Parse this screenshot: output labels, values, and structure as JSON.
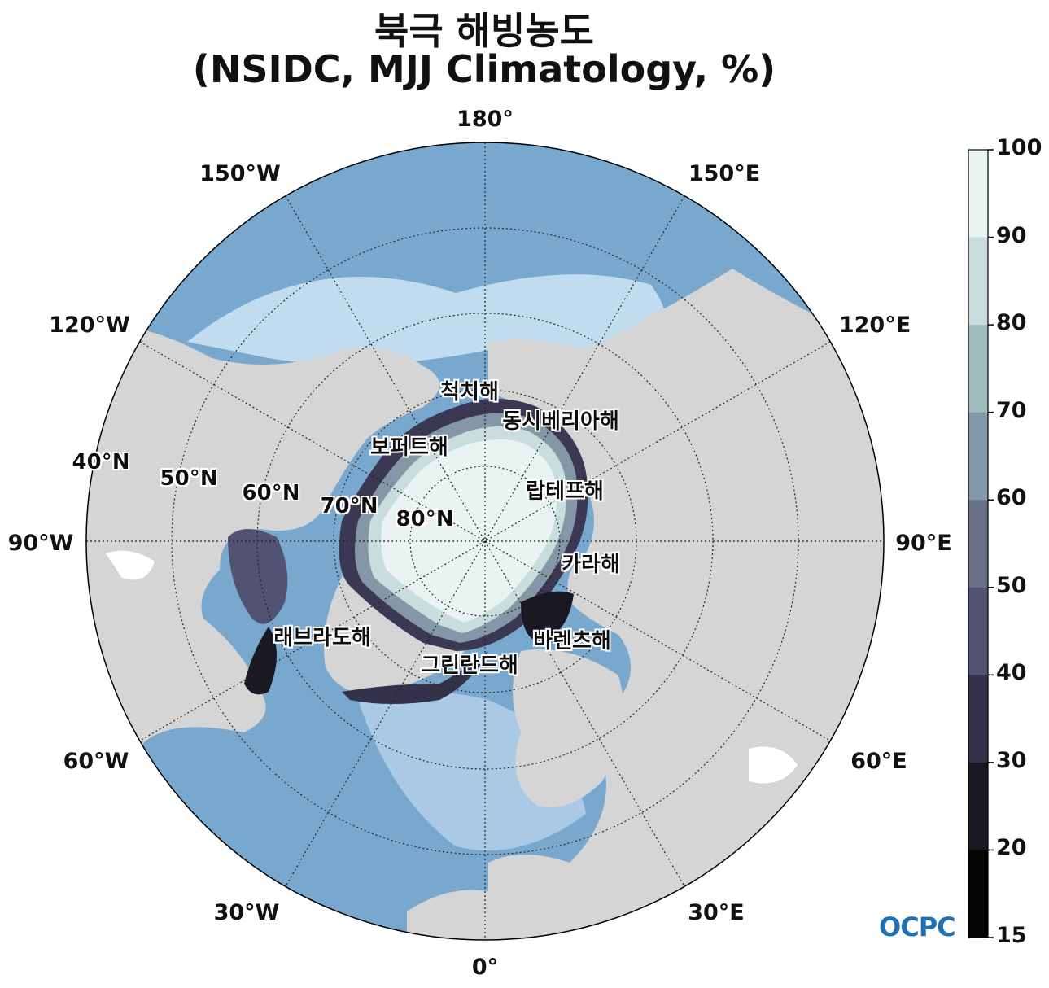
{
  "title": {
    "line1": "북극 해빙농도",
    "line2": "(NSIDC, MJJ Climatology, %)"
  },
  "map": {
    "projection": "north-polar-stereographic",
    "lon_labels": {
      "top": "180°",
      "upper_left": "150°W",
      "upper_right": "150°E",
      "left_upper": "120°W",
      "right_upper": "120°E",
      "left": "90°W",
      "right": "90°E",
      "left_lower": "60°W",
      "right_lower": "60°E",
      "lower_left": "30°W",
      "lower_right": "30°E",
      "bottom": "0°"
    },
    "lat_labels": [
      "40°N",
      "50°N",
      "60°N",
      "70°N",
      "80°N"
    ],
    "seas": [
      {
        "name": "척치해"
      },
      {
        "name": "동시베리아해"
      },
      {
        "name": "보퍼트해"
      },
      {
        "name": "랍테프해"
      },
      {
        "name": "카라해"
      },
      {
        "name": "바렌츠해"
      },
      {
        "name": "래브라도해"
      },
      {
        "name": "그린란드해"
      }
    ],
    "colors": {
      "land": "#d5d5d5",
      "ocean": "#79a8cf",
      "ocean_shallow": "#c2dcef",
      "ice_high": "#e9f3f2"
    }
  },
  "colorbar": {
    "ticks": [
      "100",
      "90",
      "80",
      "70",
      "60",
      "50",
      "40",
      "30",
      "20",
      "15"
    ],
    "colors": [
      "#e9f3f2",
      "#c9dedc",
      "#9fbcbd",
      "#8497a6",
      "#6a7288",
      "#525273",
      "#34324a",
      "#1a1822",
      "#050505"
    ]
  },
  "logo": {
    "text": "OCPC"
  }
}
